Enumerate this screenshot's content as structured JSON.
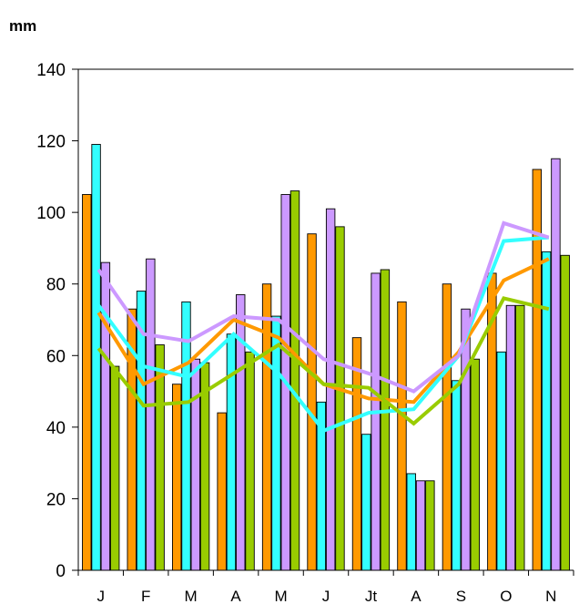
{
  "chart_data": {
    "type": "bar",
    "ylabel": "mm",
    "ylim": [
      0,
      140
    ],
    "yticks": [
      0,
      20,
      40,
      60,
      80,
      100,
      120,
      140
    ],
    "categories": [
      "J",
      "F",
      "M",
      "A",
      "M",
      "J",
      "Jt",
      "A",
      "S",
      "O",
      "N"
    ],
    "grid": false,
    "bar_series": [
      {
        "color": "#ff9900",
        "values": [
          105,
          73,
          52,
          44,
          80,
          94,
          65,
          75,
          80,
          83,
          112
        ]
      },
      {
        "color": "#33ffff",
        "values": [
          119,
          78,
          75,
          66,
          71,
          47,
          38,
          27,
          53,
          61,
          89
        ]
      },
      {
        "color": "#cc99ff",
        "values": [
          86,
          87,
          59,
          77,
          105,
          101,
          83,
          25,
          73,
          74,
          115
        ]
      },
      {
        "color": "#99cc00",
        "values": [
          57,
          63,
          58,
          61,
          106,
          96,
          84,
          25,
          59,
          74,
          88
        ]
      }
    ],
    "line_series": [
      {
        "color": "#ff9900",
        "values": [
          72,
          52,
          58,
          70,
          65,
          52,
          48,
          47,
          61,
          81,
          87
        ]
      },
      {
        "color": "#33ffff",
        "values": [
          74,
          57,
          54,
          66,
          55,
          39,
          44,
          45,
          60,
          92,
          93
        ]
      },
      {
        "color": "#cc99ff",
        "values": [
          84,
          66,
          64,
          71,
          70,
          59,
          55,
          50,
          60,
          97,
          93
        ]
      },
      {
        "color": "#99cc00",
        "values": [
          62,
          46,
          47,
          55,
          63,
          52,
          51,
          41,
          52,
          76,
          73
        ]
      }
    ]
  }
}
